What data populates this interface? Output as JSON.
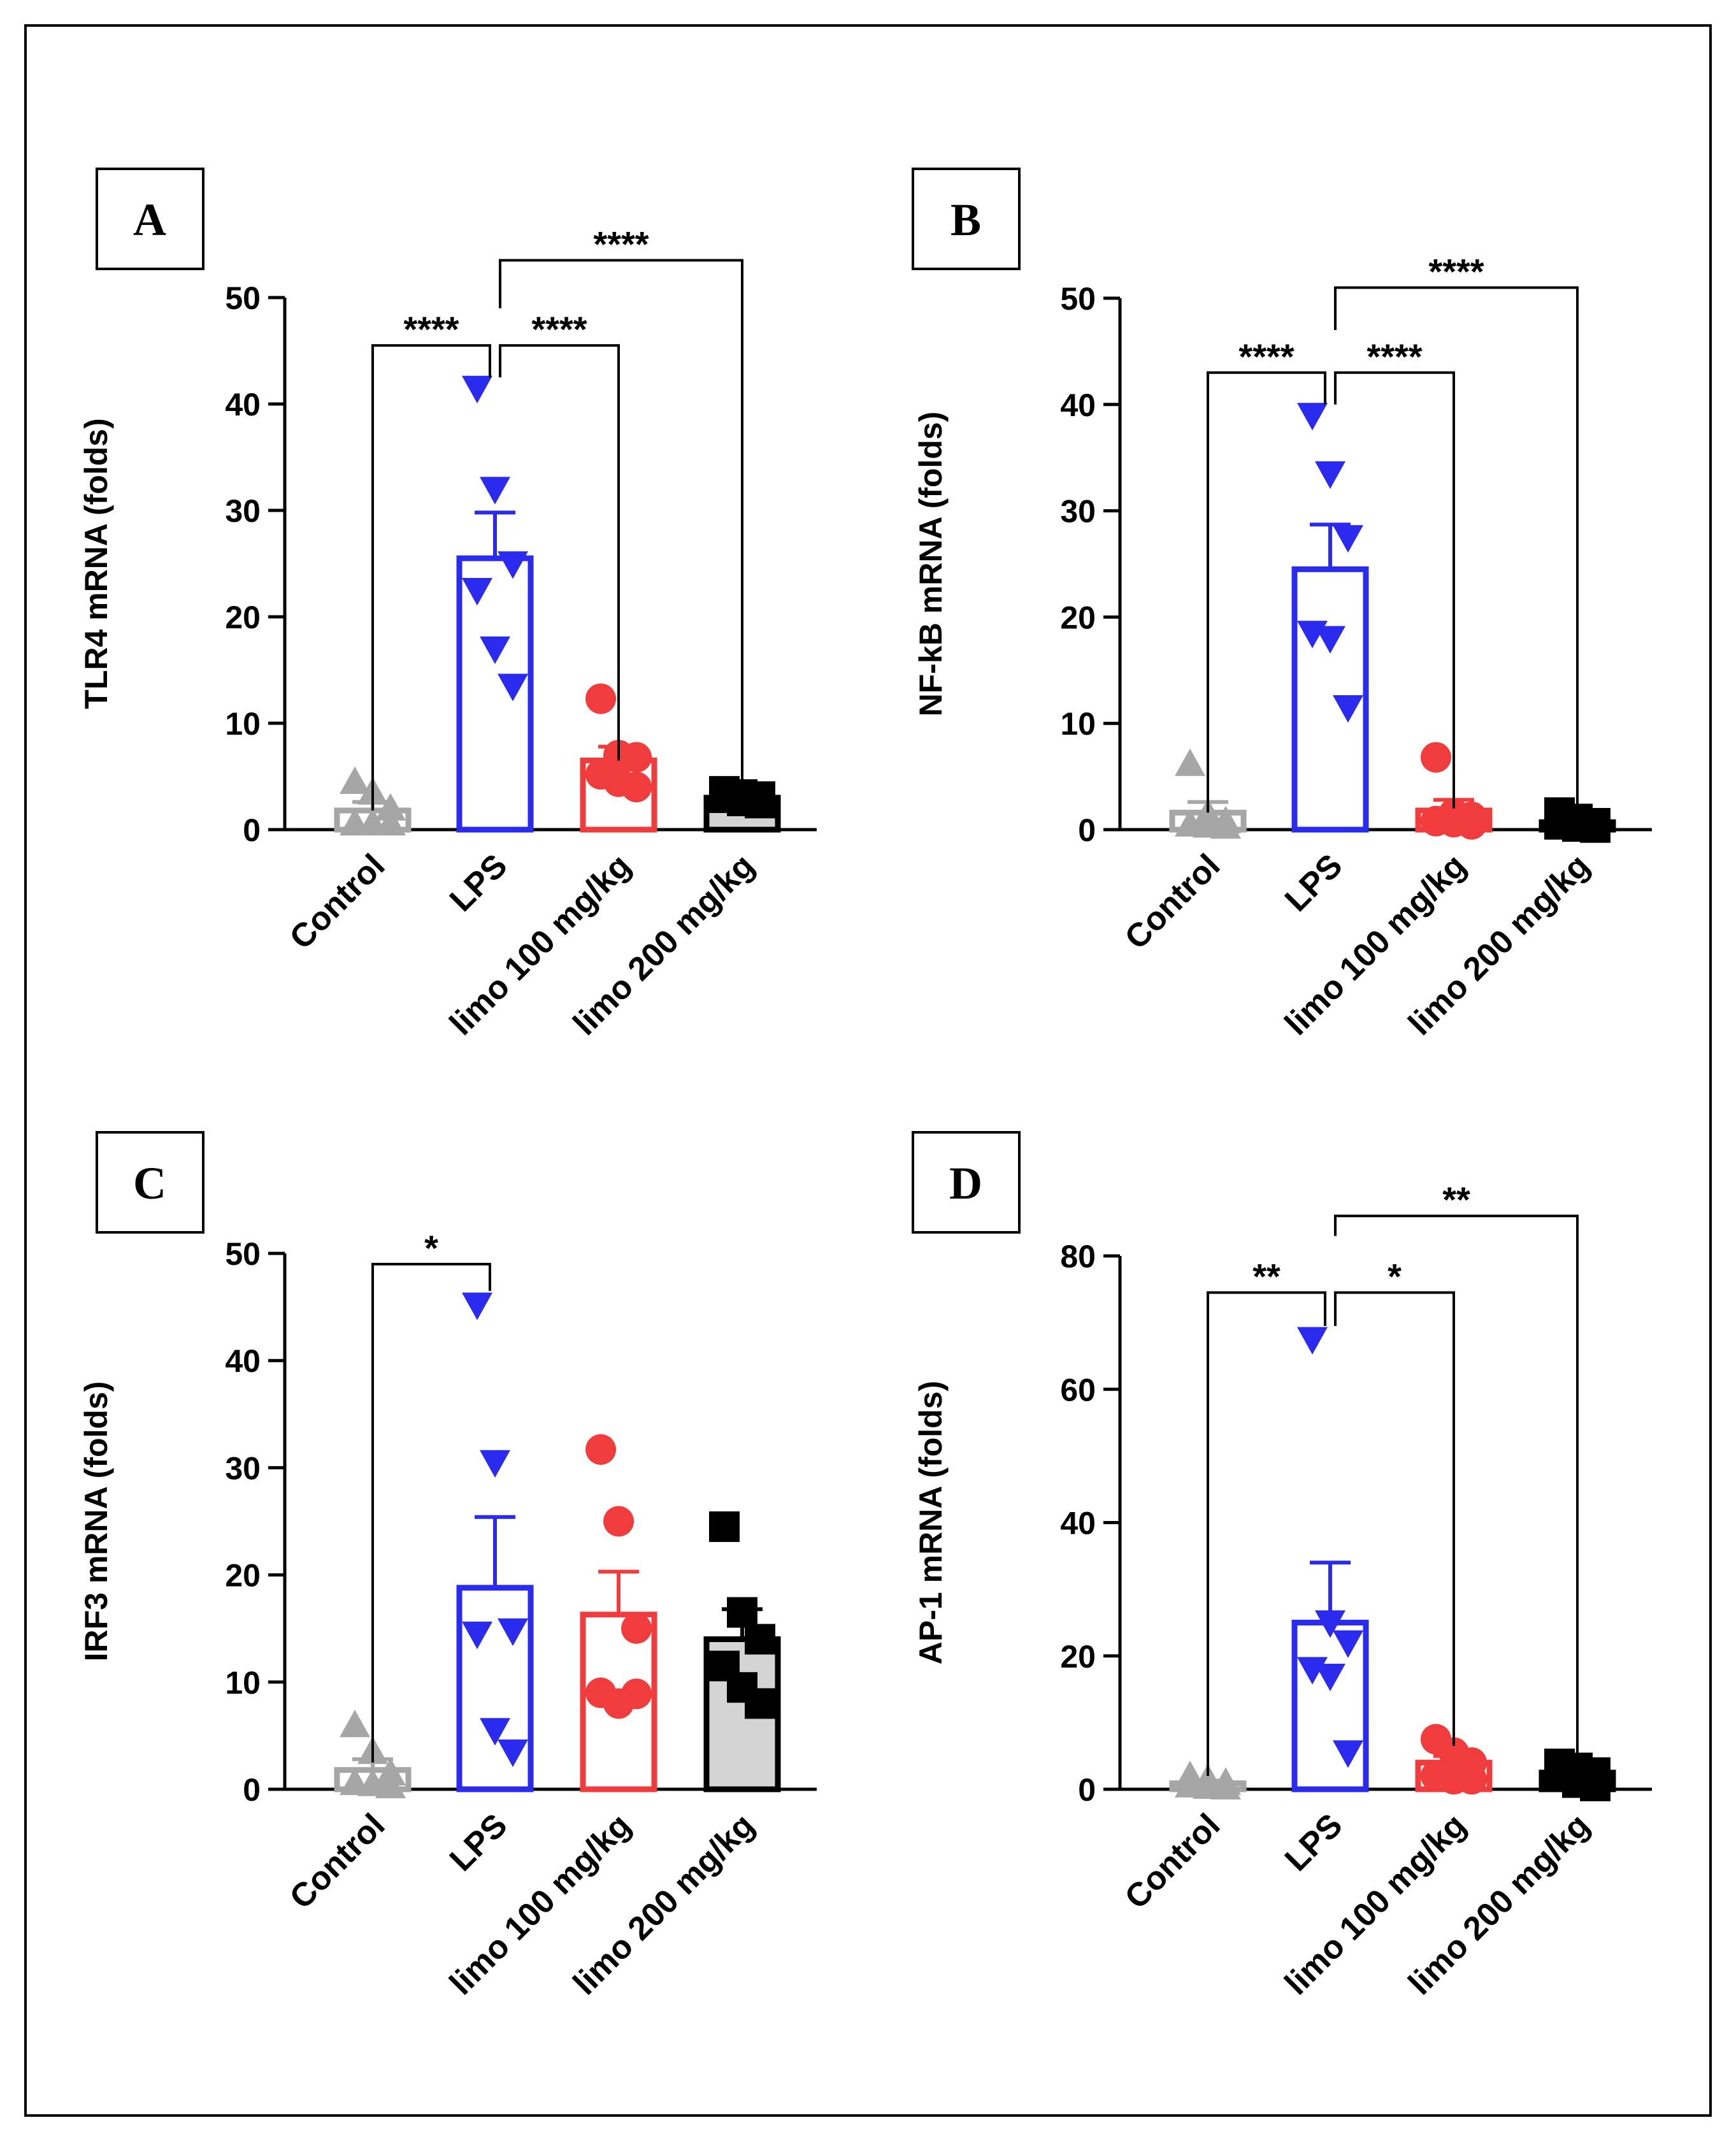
{
  "chart_data": [
    {
      "type": "bar",
      "panel": "A",
      "ylabel": "TLR4 mRNA (folds)",
      "ylim": [
        0,
        50
      ],
      "yticks": [
        0,
        10,
        20,
        30,
        40,
        50
      ],
      "tick_labels": [
        "0",
        "10",
        "20",
        "30",
        "40",
        "50"
      ],
      "categories": [
        "Control",
        "LPS",
        "limo 100 mg/kg",
        "limo 200 mg/kg"
      ],
      "series": [
        {
          "name": "Control",
          "color": "#a6a6a6",
          "fill": "#ffffff",
          "marker": "triangle-up",
          "mean": 1.8,
          "sem": 0.8,
          "points": [
            4.5,
            3.5,
            2.0,
            0.6,
            0.6,
            0.6
          ]
        },
        {
          "name": "LPS",
          "color": "#2b2bf0",
          "fill": "#ffffff",
          "marker": "triangle-down",
          "mean": 25.5,
          "sem": 4.3,
          "points": [
            41.5,
            32.0,
            25.0,
            22.5,
            17.0,
            13.5
          ]
        },
        {
          "name": "limo 100 mg/kg",
          "color": "#f03c3c",
          "fill": "#ffffff",
          "marker": "circle",
          "mean": 6.5,
          "sem": 1.3,
          "points": [
            12.3,
            7.0,
            6.8,
            5.2,
            4.5,
            4.0
          ]
        },
        {
          "name": "limo 200 mg/kg",
          "color": "#000000",
          "fill": "#d4d4d4",
          "marker": "square",
          "mean": 3.0,
          "sem": 0.3,
          "points": [
            3.6,
            3.3,
            3.1,
            3.0,
            2.7,
            2.5
          ]
        }
      ],
      "comparisons": [
        {
          "from": 0,
          "to": 1,
          "label": "****",
          "y": 45.5,
          "leftEnd": 1.8,
          "rightEnd": 42.5
        },
        {
          "from": 1,
          "to": 2,
          "label": "****",
          "y": 45.5,
          "leftEnd": 42.5,
          "rightEnd": 6.5
        },
        {
          "from": 1,
          "to": 3,
          "label": "****",
          "y": 53.5,
          "leftEnd": 49.0,
          "rightEnd": 3.0
        }
      ]
    },
    {
      "type": "bar",
      "panel": "B",
      "ylabel": "NF-kB mRNA (folds)",
      "ylim": [
        0,
        50
      ],
      "yticks": [
        0,
        10,
        20,
        30,
        40,
        50
      ],
      "tick_labels": [
        "0",
        "10",
        "20",
        "30",
        "40",
        "50"
      ],
      "categories": [
        "Control",
        "LPS",
        "limo 100 mg/kg",
        "limo 200 mg/kg"
      ],
      "series": [
        {
          "name": "Control",
          "color": "#a6a6a6",
          "fill": "#ffffff",
          "marker": "triangle-up",
          "mean": 1.6,
          "sem": 1.0,
          "points": [
            6.2,
            1.5,
            0.8,
            0.5,
            0.4,
            0.3
          ]
        },
        {
          "name": "LPS",
          "color": "#2b2bf0",
          "fill": "#ffffff",
          "marker": "triangle-down",
          "mean": 24.5,
          "sem": 4.2,
          "points": [
            39.0,
            33.5,
            27.5,
            18.5,
            18.0,
            11.5
          ]
        },
        {
          "name": "limo 100 mg/kg",
          "color": "#f03c3c",
          "fill": "#ffffff",
          "marker": "circle",
          "mean": 1.8,
          "sem": 1.0,
          "points": [
            6.8,
            1.5,
            1.2,
            0.8,
            0.7,
            0.5
          ]
        },
        {
          "name": "limo 200 mg/kg",
          "color": "#000000",
          "fill": "#d4d4d4",
          "marker": "square",
          "mean": 0.7,
          "sem": 0.3,
          "points": [
            1.6,
            1.0,
            0.6,
            0.5,
            0.3,
            0.2
          ]
        }
      ],
      "comparisons": [
        {
          "from": 0,
          "to": 1,
          "label": "****",
          "y": 43.0,
          "leftEnd": 1.6,
          "rightEnd": 40.0
        },
        {
          "from": 1,
          "to": 2,
          "label": "****",
          "y": 43.0,
          "leftEnd": 40.0,
          "rightEnd": 2.0
        },
        {
          "from": 1,
          "to": 3,
          "label": "****",
          "y": 51.0,
          "leftEnd": 47.0,
          "rightEnd": 1.0
        }
      ]
    },
    {
      "type": "bar",
      "panel": "C",
      "ylabel": "IRF3 mRNA (folds)",
      "ylim": [
        0,
        50
      ],
      "yticks": [
        0,
        10,
        20,
        30,
        40,
        50
      ],
      "tick_labels": [
        "0",
        "10",
        "20",
        "30",
        "40",
        "50"
      ],
      "categories": [
        "Control",
        "LPS",
        "limo 100 mg/kg",
        "limo 200 mg/kg"
      ],
      "series": [
        {
          "name": "Control",
          "color": "#a6a6a6",
          "fill": "#ffffff",
          "marker": "triangle-up",
          "mean": 1.8,
          "sem": 1.0,
          "points": [
            6.0,
            3.5,
            1.5,
            0.6,
            0.5,
            0.3
          ]
        },
        {
          "name": "LPS",
          "color": "#2b2bf0",
          "fill": "#ffffff",
          "marker": "triangle-down",
          "mean": 18.8,
          "sem": 6.6,
          "points": [
            45.2,
            30.5,
            14.8,
            14.5,
            5.5,
            3.5
          ]
        },
        {
          "name": "limo 100 mg/kg",
          "color": "#f03c3c",
          "fill": "#ffffff",
          "marker": "circle",
          "mean": 16.3,
          "sem": 4.0,
          "points": [
            31.7,
            25.0,
            15.0,
            9.0,
            8.0,
            8.9
          ]
        },
        {
          "name": "limo 200 mg/kg",
          "color": "#000000",
          "fill": "#d4d4d4",
          "marker": "square",
          "mean": 14.0,
          "sem": 2.8,
          "points": [
            24.5,
            16.5,
            14.0,
            11.5,
            9.5,
            8.0
          ]
        }
      ],
      "comparisons": [
        {
          "from": 0,
          "to": 1,
          "label": "*",
          "y": 49.0,
          "leftEnd": 2.5,
          "rightEnd": 46.5
        }
      ]
    },
    {
      "type": "bar",
      "panel": "D",
      "ylabel": "AP-1 mRNA (folds)",
      "ylim": [
        0,
        80
      ],
      "yticks": [
        0,
        20,
        40,
        60,
        80
      ],
      "tick_labels": [
        "0",
        "20",
        "40",
        "60",
        "80"
      ],
      "categories": [
        "Control",
        "LPS",
        "limo 100 mg/kg",
        "limo 200 mg/kg"
      ],
      "series": [
        {
          "name": "Control",
          "color": "#a6a6a6",
          "fill": "#ffffff",
          "marker": "triangle-up",
          "mean": 0.9,
          "sem": 0.4,
          "points": [
            2.0,
            1.5,
            1.0,
            0.6,
            0.4,
            0.3
          ]
        },
        {
          "name": "LPS",
          "color": "#2b2bf0",
          "fill": "#ffffff",
          "marker": "triangle-down",
          "mean": 25.0,
          "sem": 9.0,
          "points": [
            67.5,
            25.0,
            22.0,
            18.0,
            17.0,
            5.5
          ]
        },
        {
          "name": "limo 100 mg/kg",
          "color": "#f03c3c",
          "fill": "#ffffff",
          "marker": "circle",
          "mean": 4.0,
          "sem": 1.0,
          "points": [
            7.5,
            5.5,
            4.0,
            2.0,
            1.5,
            1.5
          ]
        },
        {
          "name": "limo 200 mg/kg",
          "color": "#000000",
          "fill": "#d4d4d4",
          "marker": "square",
          "mean": 2.5,
          "sem": 0.7,
          "points": [
            3.8,
            3.2,
            2.5,
            2.0,
            1.0,
            0.5
          ]
        }
      ],
      "comparisons": [
        {
          "from": 0,
          "to": 1,
          "label": "**",
          "y": 74.5,
          "leftEnd": 2.0,
          "rightEnd": 69.5
        },
        {
          "from": 1,
          "to": 2,
          "label": "*",
          "y": 74.5,
          "leftEnd": 69.5,
          "rightEnd": 6.5
        },
        {
          "from": 1,
          "to": 3,
          "label": "**",
          "y": 86.0,
          "leftEnd": 83.0,
          "rightEnd": 4.0
        }
      ]
    }
  ]
}
